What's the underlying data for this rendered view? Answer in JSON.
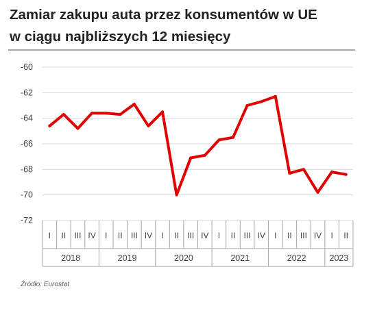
{
  "title_line1": "Zamiar zakupu auta przez konsumentów w UE",
  "title_line2": "w ciągu najbliższych 12 miesięcy",
  "source": "Źródło: Eurostat",
  "colors": {
    "series": "#e00000",
    "grid": "#d9d9d9",
    "axis": "#a6a6a6",
    "text": "#404040"
  },
  "chart_data": {
    "type": "line",
    "title": "Zamiar zakupu auta przez konsumentów w UE w ciągu najbliższych 12 miesięcy",
    "ylim": [
      -72,
      -60
    ],
    "yticks": [
      -60,
      -62,
      -64,
      -66,
      -68,
      -70,
      -72
    ],
    "grid": true,
    "legend": "none",
    "x": [
      "2018 I",
      "2018 II",
      "2018 III",
      "2018 IV",
      "2019 I",
      "2019 II",
      "2019 III",
      "2019 IV",
      "2020 I",
      "2020 II",
      "2020 III",
      "2020 IV",
      "2021 I",
      "2021 II",
      "2021 III",
      "2021 IV",
      "2022 I",
      "2022 II",
      "2022 III",
      "2022 IV",
      "2023 I",
      "2023 II"
    ],
    "quarter_labels": [
      "I",
      "II",
      "III",
      "IV",
      "I",
      "II",
      "III",
      "IV",
      "I",
      "II",
      "III",
      "IV",
      "I",
      "II",
      "III",
      "IV",
      "I",
      "II",
      "III",
      "IV",
      "I",
      "II"
    ],
    "years": [
      {
        "label": "2018",
        "quarters": 4
      },
      {
        "label": "2019",
        "quarters": 4
      },
      {
        "label": "2020",
        "quarters": 4
      },
      {
        "label": "2021",
        "quarters": 4
      },
      {
        "label": "2022",
        "quarters": 4
      },
      {
        "label": "2023",
        "quarters": 2
      }
    ],
    "series": [
      {
        "values": [
          -64.6,
          -63.7,
          -64.8,
          -63.6,
          -63.6,
          -63.7,
          -62.9,
          -64.6,
          -63.5,
          -70.0,
          -67.1,
          -66.9,
          -65.7,
          -65.5,
          -63.0,
          -62.7,
          -62.3,
          -68.3,
          -68.0,
          -69.8,
          -68.2,
          -68.4
        ]
      }
    ]
  }
}
